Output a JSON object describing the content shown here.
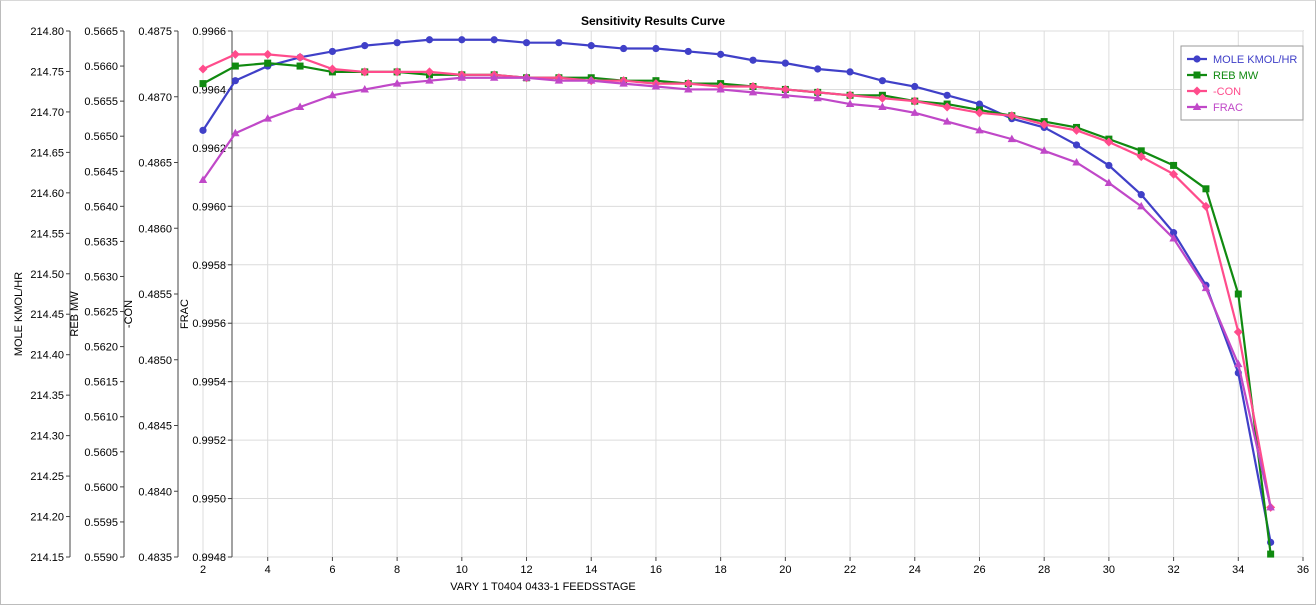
{
  "chart_data": {
    "type": "line",
    "title": "Sensitivity Results Curve",
    "xlabel": "VARY   1 T0404 0433-1 FEEDSSTAGE",
    "xlim": [
      2,
      36
    ],
    "xticks": [
      2,
      4,
      6,
      8,
      10,
      12,
      14,
      16,
      18,
      20,
      22,
      24,
      26,
      28,
      30,
      32,
      34,
      36
    ],
    "grid": true,
    "legend_position": "top-right",
    "x": [
      2,
      3,
      4,
      5,
      6,
      7,
      8,
      9,
      10,
      11,
      12,
      13,
      14,
      15,
      16,
      17,
      18,
      19,
      20,
      21,
      22,
      23,
      24,
      25,
      26,
      27,
      28,
      29,
      30,
      31,
      32,
      33,
      34,
      35
    ],
    "y_axes": [
      {
        "label": "MOLE KMOL/HR",
        "range": [
          214.15,
          214.8
        ],
        "ticks": [
          "214.80",
          "214.75",
          "214.70",
          "214.65",
          "214.60",
          "214.55",
          "214.50",
          "214.45",
          "214.40",
          "214.35",
          "214.30",
          "214.25",
          "214.20",
          "214.15"
        ]
      },
      {
        "label": "REB MW",
        "range": [
          0.559,
          0.5665
        ],
        "ticks": [
          "0.5665",
          "0.5660",
          "0.5655",
          "0.5650",
          "0.5645",
          "0.5640",
          "0.5635",
          "0.5630",
          "0.5625",
          "0.5620",
          "0.5615",
          "0.5610",
          "0.5605",
          "0.5600",
          "0.5595",
          "0.5590"
        ]
      },
      {
        "label": "-CON",
        "range": [
          0.4835,
          0.4875
        ],
        "ticks": [
          "0.4875",
          "0.4870",
          "0.4865",
          "0.4860",
          "0.4855",
          "0.4850",
          "0.4845",
          "0.4840",
          "0.4835"
        ]
      },
      {
        "label": "FRAC",
        "range": [
          0.9948,
          0.9966
        ],
        "ticks": [
          "0.9966",
          "0.9964",
          "0.9962",
          "0.9960",
          "0.9958",
          "0.9956",
          "0.9954",
          "0.9952",
          "0.9950",
          "0.9948"
        ]
      }
    ],
    "series": [
      {
        "name": "MOLE KMOL/HR",
        "axis": 3,
        "color": "#4040c8",
        "marker": "circle",
        "values": [
          0.99626,
          0.99643,
          0.99648,
          0.99651,
          0.99653,
          0.99655,
          0.99656,
          0.99657,
          0.99657,
          0.99657,
          0.99656,
          0.99656,
          0.99655,
          0.99654,
          0.99654,
          0.99653,
          0.99652,
          0.9965,
          0.99649,
          0.99647,
          0.99646,
          0.99643,
          0.99641,
          0.99638,
          0.99635,
          0.9963,
          0.99627,
          0.99621,
          0.99614,
          0.99604,
          0.99591,
          0.99573,
          0.99543,
          0.99485
        ]
      },
      {
        "name": "REB MW",
        "axis": 3,
        "color": "#108a10",
        "marker": "square",
        "values": [
          0.99642,
          0.99648,
          0.99649,
          0.99648,
          0.99646,
          0.99646,
          0.99646,
          0.99645,
          0.99645,
          0.99645,
          0.99644,
          0.99644,
          0.99644,
          0.99643,
          0.99643,
          0.99642,
          0.99642,
          0.99641,
          0.9964,
          0.99639,
          0.99638,
          0.99638,
          0.99636,
          0.99635,
          0.99633,
          0.99631,
          0.99629,
          0.99627,
          0.99623,
          0.99619,
          0.99614,
          0.99606,
          0.9957,
          0.99481
        ]
      },
      {
        "name": "-CON",
        "axis": 3,
        "color": "#ff4c8c",
        "marker": "diamond",
        "values": [
          0.99647,
          0.99652,
          0.99652,
          0.99651,
          0.99647,
          0.99646,
          0.99646,
          0.99646,
          0.99645,
          0.99645,
          0.99644,
          0.99644,
          0.99643,
          0.99643,
          0.99642,
          0.99642,
          0.99641,
          0.99641,
          0.9964,
          0.99639,
          0.99638,
          0.99637,
          0.99636,
          0.99634,
          0.99632,
          0.99631,
          0.99628,
          0.99626,
          0.99622,
          0.99617,
          0.99611,
          0.996,
          0.99557,
          0.99497
        ]
      },
      {
        "name": "FRAC",
        "axis": 3,
        "color": "#c048c8",
        "marker": "triangle",
        "values": [
          0.99609,
          0.99625,
          0.9963,
          0.99634,
          0.99638,
          0.9964,
          0.99642,
          0.99643,
          0.99644,
          0.99644,
          0.99644,
          0.99643,
          0.99643,
          0.99642,
          0.99641,
          0.9964,
          0.9964,
          0.99639,
          0.99638,
          0.99637,
          0.99635,
          0.99634,
          0.99632,
          0.99629,
          0.99626,
          0.99623,
          0.99619,
          0.99615,
          0.99608,
          0.996,
          0.99589,
          0.99572,
          0.99546,
          0.99497
        ]
      }
    ]
  }
}
